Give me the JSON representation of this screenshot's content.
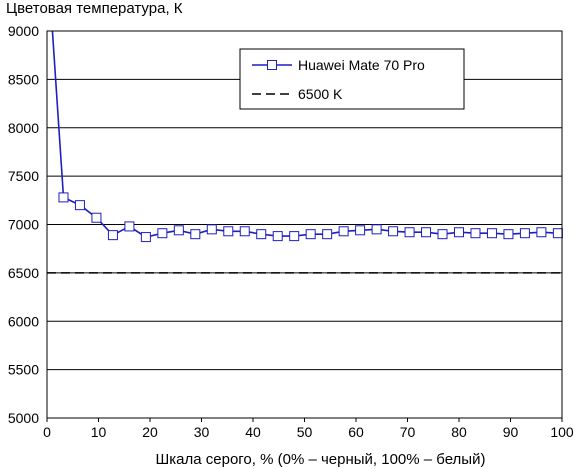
{
  "chart_data": {
    "type": "line",
    "ylabel": "Цветовая температура, К",
    "xlabel": "Шкала серого, % (0% – черный, 100% – белый)",
    "xlim": [
      0,
      100
    ],
    "ylim": [
      5000,
      9000
    ],
    "x_ticks": [
      0,
      10,
      20,
      30,
      40,
      50,
      60,
      70,
      80,
      90,
      100
    ],
    "y_ticks": [
      5000,
      5500,
      6000,
      6500,
      7000,
      7500,
      8000,
      8500,
      9000
    ],
    "grid": "horizontal",
    "legend_position": "top-right",
    "series": [
      {
        "name": "Huawei Mate 70 Pro",
        "color": "#1f1fbf",
        "marker": "square-open",
        "line_style": "solid",
        "x": [
          1,
          3.2,
          6.4,
          9.6,
          12.8,
          16,
          19.2,
          22.4,
          25.6,
          28.8,
          32,
          35.2,
          38.4,
          41.6,
          44.8,
          48,
          51.2,
          54.4,
          57.6,
          60.8,
          64,
          67.2,
          70.4,
          73.6,
          76.8,
          80,
          83.2,
          86.4,
          89.6,
          92.8,
          96,
          99.2
        ],
        "y": [
          9050,
          7280,
          7200,
          7070,
          6890,
          6980,
          6870,
          6910,
          6940,
          6900,
          6950,
          6930,
          6930,
          6900,
          6880,
          6880,
          6900,
          6900,
          6930,
          6940,
          6950,
          6930,
          6920,
          6920,
          6900,
          6920,
          6910,
          6910,
          6900,
          6910,
          6920,
          6910
        ]
      },
      {
        "name": "6500 K",
        "color": "#000000",
        "line_style": "dashed",
        "x": [
          0,
          100
        ],
        "y": [
          6500,
          6500
        ]
      }
    ]
  }
}
